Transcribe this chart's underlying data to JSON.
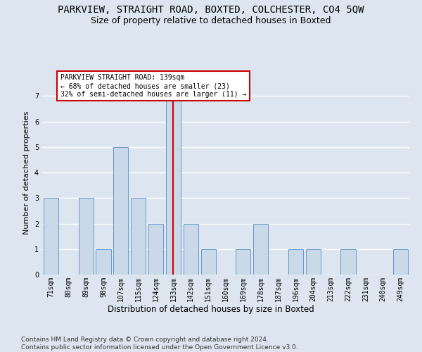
{
  "title": "PARKVIEW, STRAIGHT ROAD, BOXTED, COLCHESTER, CO4 5QW",
  "subtitle": "Size of property relative to detached houses in Boxted",
  "xlabel": "Distribution of detached houses by size in Boxted",
  "ylabel": "Number of detached properties",
  "categories": [
    "71sqm",
    "80sqm",
    "89sqm",
    "98sqm",
    "107sqm",
    "115sqm",
    "124sqm",
    "133sqm",
    "142sqm",
    "151sqm",
    "160sqm",
    "169sqm",
    "178sqm",
    "187sqm",
    "196sqm",
    "204sqm",
    "213sqm",
    "222sqm",
    "231sqm",
    "240sqm",
    "249sqm"
  ],
  "values": [
    3,
    0,
    3,
    1,
    5,
    3,
    2,
    7,
    2,
    1,
    0,
    1,
    2,
    0,
    1,
    1,
    0,
    1,
    0,
    0,
    1
  ],
  "bar_color": "#c9d9e8",
  "bar_edge_color": "#6699cc",
  "background_color": "#dde6f0",
  "grid_color": "#ffffff",
  "vline_x_index": 7,
  "vline_color": "#cc0000",
  "annotation_text": "PARKVIEW STRAIGHT ROAD: 139sqm\n← 68% of detached houses are smaller (23)\n32% of semi-detached houses are larger (11) →",
  "annotation_box_color": "#ffffff",
  "annotation_box_edge_color": "#cc0000",
  "ylim": [
    0,
    8
  ],
  "yticks": [
    0,
    1,
    2,
    3,
    4,
    5,
    6,
    7
  ],
  "footer": "Contains HM Land Registry data © Crown copyright and database right 2024.\nContains public sector information licensed under the Open Government Licence v3.0.",
  "title_fontsize": 10,
  "subtitle_fontsize": 9,
  "ylabel_fontsize": 8,
  "xlabel_fontsize": 8.5,
  "tick_fontsize": 7,
  "annotation_fontsize": 7,
  "footer_fontsize": 6.5
}
